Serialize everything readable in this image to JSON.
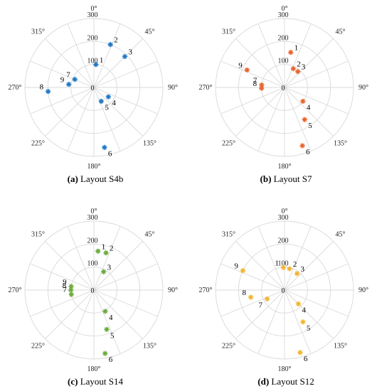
{
  "chart_data": [
    {
      "type": "scatter",
      "subtype": "polar",
      "caption_tag": "(a)",
      "caption_text": " Layout S4b",
      "theta_ticks": [
        "0°",
        "45°",
        "90°",
        "135°",
        "180°",
        "225°",
        "270°",
        "315°"
      ],
      "r_ticks": [
        "0",
        "100",
        "200",
        "300"
      ],
      "rlim": [
        0,
        300
      ],
      "angular_grid_step_deg": 22.5,
      "marker_color": "#1f77c4",
      "points": [
        {
          "label": "1",
          "theta": 5,
          "r": 100
        },
        {
          "label": "2",
          "theta": 21,
          "r": 200
        },
        {
          "label": "3",
          "theta": 45,
          "r": 190
        },
        {
          "label": "4",
          "theta": 123,
          "r": 75
        },
        {
          "label": "5",
          "theta": 152,
          "r": 68
        },
        {
          "label": "6",
          "theta": 170,
          "r": 265
        },
        {
          "label": "7",
          "theta": 293,
          "r": 90
        },
        {
          "label": "8",
          "theta": 265,
          "r": 200
        },
        {
          "label": "9",
          "theta": 277,
          "r": 110
        }
      ]
    },
    {
      "type": "scatter",
      "subtype": "polar",
      "caption_tag": "(b)",
      "caption_text": " Layout S7",
      "theta_ticks": [
        "0°",
        "45°",
        "90°",
        "135°",
        "180°",
        "225°",
        "270°",
        "315°"
      ],
      "r_ticks": [
        "0",
        "100",
        "200",
        "300"
      ],
      "rlim": [
        0,
        300
      ],
      "angular_grid_step_deg": 22.5,
      "marker_color": "#e8632b",
      "points": [
        {
          "label": "1",
          "theta": 10,
          "r": 155
        },
        {
          "label": "2",
          "theta": 25,
          "r": 90
        },
        {
          "label": "3",
          "theta": 40,
          "r": 90
        },
        {
          "label": "4",
          "theta": 127,
          "r": 100
        },
        {
          "label": "5",
          "theta": 148,
          "r": 165
        },
        {
          "label": "6",
          "theta": 163,
          "r": 265
        },
        {
          "label": "7",
          "theta": 276,
          "r": 100
        },
        {
          "label": "8",
          "theta": 268,
          "r": 100
        },
        {
          "label": "9",
          "theta": 295,
          "r": 180
        }
      ]
    },
    {
      "type": "scatter",
      "subtype": "polar",
      "caption_tag": "(c)",
      "caption_text": " Layout S14",
      "theta_ticks": [
        "0°",
        "45°",
        "90°",
        "135°",
        "180°",
        "225°",
        "270°",
        "315°"
      ],
      "r_ticks": [
        "0",
        "100",
        "200",
        "300"
      ],
      "rlim": [
        0,
        300
      ],
      "angular_grid_step_deg": 22.5,
      "marker_color": "#6aaa3a",
      "points": [
        {
          "label": "1",
          "theta": 6,
          "r": 170
        },
        {
          "label": "2",
          "theta": 18,
          "r": 170
        },
        {
          "label": "3",
          "theta": 28,
          "r": 90
        },
        {
          "label": "4",
          "theta": 152,
          "r": 105
        },
        {
          "label": "5",
          "theta": 162,
          "r": 180
        },
        {
          "label": "6",
          "theta": 170,
          "r": 280
        },
        {
          "label": "7",
          "theta": 259,
          "r": 100
        },
        {
          "label": "8",
          "theta": 270,
          "r": 100
        },
        {
          "label": "9",
          "theta": 279,
          "r": 100
        }
      ]
    },
    {
      "type": "scatter",
      "subtype": "polar",
      "caption_tag": "(d)",
      "caption_text": " Layout S12",
      "theta_ticks": [
        "0°",
        "45°",
        "90°",
        "135°",
        "180°",
        "225°",
        "270°",
        "315°"
      ],
      "r_ticks": [
        "0",
        "100",
        "200",
        "300"
      ],
      "rlim": [
        0,
        300
      ],
      "angular_grid_step_deg": 22.5,
      "marker_color": "#f2b42e",
      "points": [
        {
          "label": "1",
          "theta": -3,
          "r": 98
        },
        {
          "label": "2",
          "theta": 13,
          "r": 95
        },
        {
          "label": "3",
          "theta": 37,
          "r": 90
        },
        {
          "label": "4",
          "theta": 135,
          "r": 85
        },
        {
          "label": "5",
          "theta": 150,
          "r": 160
        },
        {
          "label": "6",
          "theta": 166,
          "r": 280
        },
        {
          "label": "7",
          "theta": 243,
          "r": 85
        },
        {
          "label": "8",
          "theta": 258,
          "r": 150
        },
        {
          "label": "9",
          "theta": 295,
          "r": 200
        }
      ]
    }
  ]
}
